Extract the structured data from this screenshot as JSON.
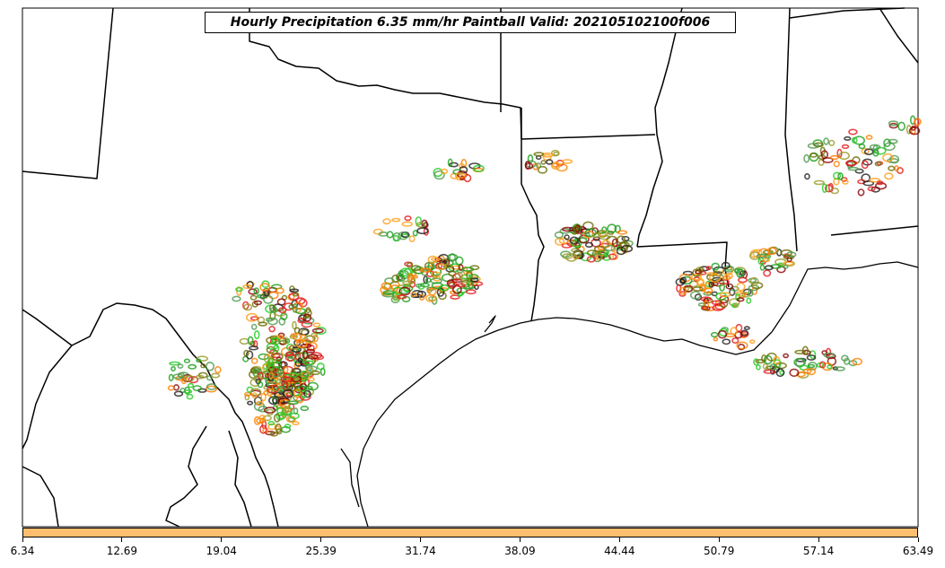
{
  "title": "Hourly Precipitation 6.35 mm/hr Paintball Valid: 202105102100f006",
  "colorbar": {
    "fill_color": "#fdbf6f",
    "ticks": [
      "6.34",
      "12.69",
      "19.04",
      "25.39",
      "31.74",
      "38.09",
      "44.44",
      "50.79",
      "57.14",
      "63.49"
    ]
  },
  "member_colors": [
    "#e31a1c",
    "#ff7f00",
    "#ff9f1a",
    "#8b0000",
    "#6b6b00",
    "#1a9e1a",
    "#22cc22",
    "#1f1f1f",
    "#4d9a4d",
    "#9a9a2a"
  ]
}
